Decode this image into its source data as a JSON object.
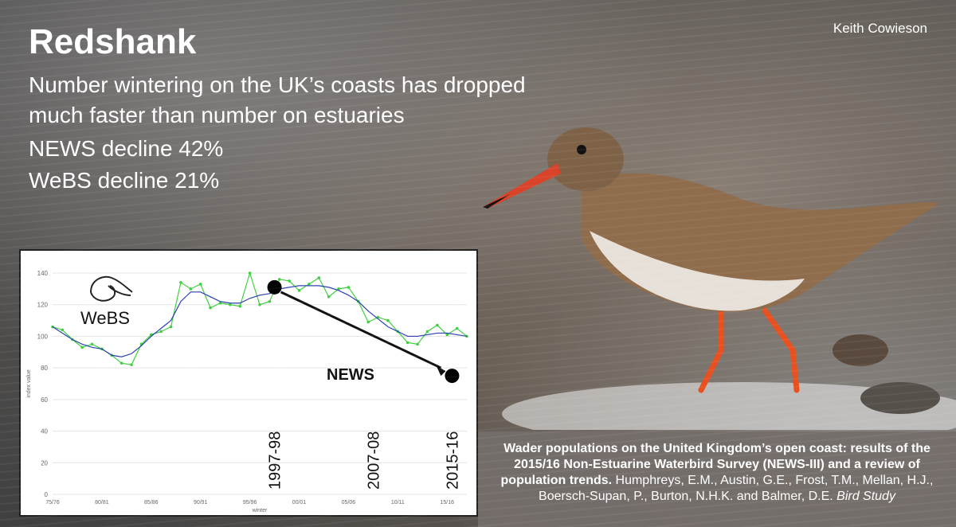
{
  "slide": {
    "title": "Redshank",
    "subtitle_lines": [
      "Number wintering on the UK’s coasts has dropped",
      "much faster than number on estuaries",
      "NEWS decline 42%",
      "WeBS decline 21%"
    ],
    "photo_credit": "Keith Cowieson",
    "citation": {
      "bold": "Wader populations on the United Kingdom’s open coast: results of the 2015/16 Non-Estuarine Waterbird Survey (NEWS-III) and a review of population trends.",
      "authors": " Humphreys, E.M., Austin, G.E., Frost, T.M., Mellan, H.J., Boersch-Supan, P., Burton, N.H.K. and Balmer, D.E. ",
      "journal": "Bird Study"
    }
  },
  "chart_data": {
    "type": "line",
    "ylabel": "index value",
    "xlabel": "winter",
    "ylim": [
      0,
      140
    ],
    "yticks": [
      0,
      20,
      40,
      60,
      80,
      100,
      120,
      140
    ],
    "xlim": [
      1975,
      2017
    ],
    "xticks": [
      {
        "x": 1975,
        "label": "75/76"
      },
      {
        "x": 1980,
        "label": "80/81"
      },
      {
        "x": 1985,
        "label": "85/86"
      },
      {
        "x": 1990,
        "label": "90/91"
      },
      {
        "x": 1995,
        "label": "95/96"
      },
      {
        "x": 2000,
        "label": "00/01"
      },
      {
        "x": 2005,
        "label": "05/06"
      },
      {
        "x": 2010,
        "label": "10/11"
      },
      {
        "x": 2015,
        "label": "15/16"
      }
    ],
    "grid": true,
    "logo_text": "WeBS",
    "series": [
      {
        "color": "#3fcf3f",
        "markers": true,
        "x": [
          1975,
          1976,
          1977,
          1978,
          1979,
          1980,
          1981,
          1982,
          1983,
          1984,
          1985,
          1986,
          1987,
          1988,
          1989,
          1990,
          1991,
          1992,
          1993,
          1994,
          1995,
          1996,
          1997,
          1998,
          1999,
          2000,
          2001,
          2002,
          2003,
          2004,
          2005,
          2006,
          2007,
          2008,
          2009,
          2010,
          2011,
          2012,
          2013,
          2014,
          2015,
          2016,
          2017
        ],
        "values": [
          106,
          104,
          98,
          93,
          95,
          92,
          88,
          83,
          82,
          95,
          101,
          103,
          106,
          134,
          130,
          133,
          118,
          121,
          120,
          119,
          140,
          120,
          122,
          136,
          135,
          129,
          133,
          137,
          125,
          130,
          131,
          122,
          109,
          112,
          110,
          103,
          96,
          95,
          103,
          107,
          101,
          105,
          100
        ]
      },
      {
        "color": "#2a3fb0",
        "markers": false,
        "x": [
          1975,
          1976,
          1977,
          1978,
          1979,
          1980,
          1981,
          1982,
          1983,
          1984,
          1985,
          1986,
          1987,
          1988,
          1989,
          1990,
          1991,
          1992,
          1993,
          1994,
          1995,
          1996,
          1997,
          1998,
          1999,
          2000,
          2001,
          2002,
          2003,
          2004,
          2005,
          2006,
          2007,
          2008,
          2009,
          2010,
          2011,
          2012,
          2013,
          2014,
          2015,
          2016,
          2017
        ],
        "values": [
          106,
          102,
          98,
          95,
          93,
          92,
          88,
          87,
          89,
          94,
          100,
          105,
          110,
          122,
          128,
          128,
          125,
          122,
          121,
          121,
          124,
          126,
          127,
          130,
          131,
          132,
          132,
          132,
          131,
          129,
          126,
          122,
          116,
          111,
          106,
          103,
          100,
          100,
          101,
          102,
          102,
          101,
          100
        ]
      }
    ],
    "news_points": [
      {
        "x": 1997.5,
        "y": 131,
        "label": "1997-98"
      },
      {
        "x": 2007.5,
        "label": "2007-08"
      },
      {
        "x": 2015.5,
        "y": 75,
        "label": "2015-16"
      }
    ],
    "news_label": "NEWS"
  }
}
